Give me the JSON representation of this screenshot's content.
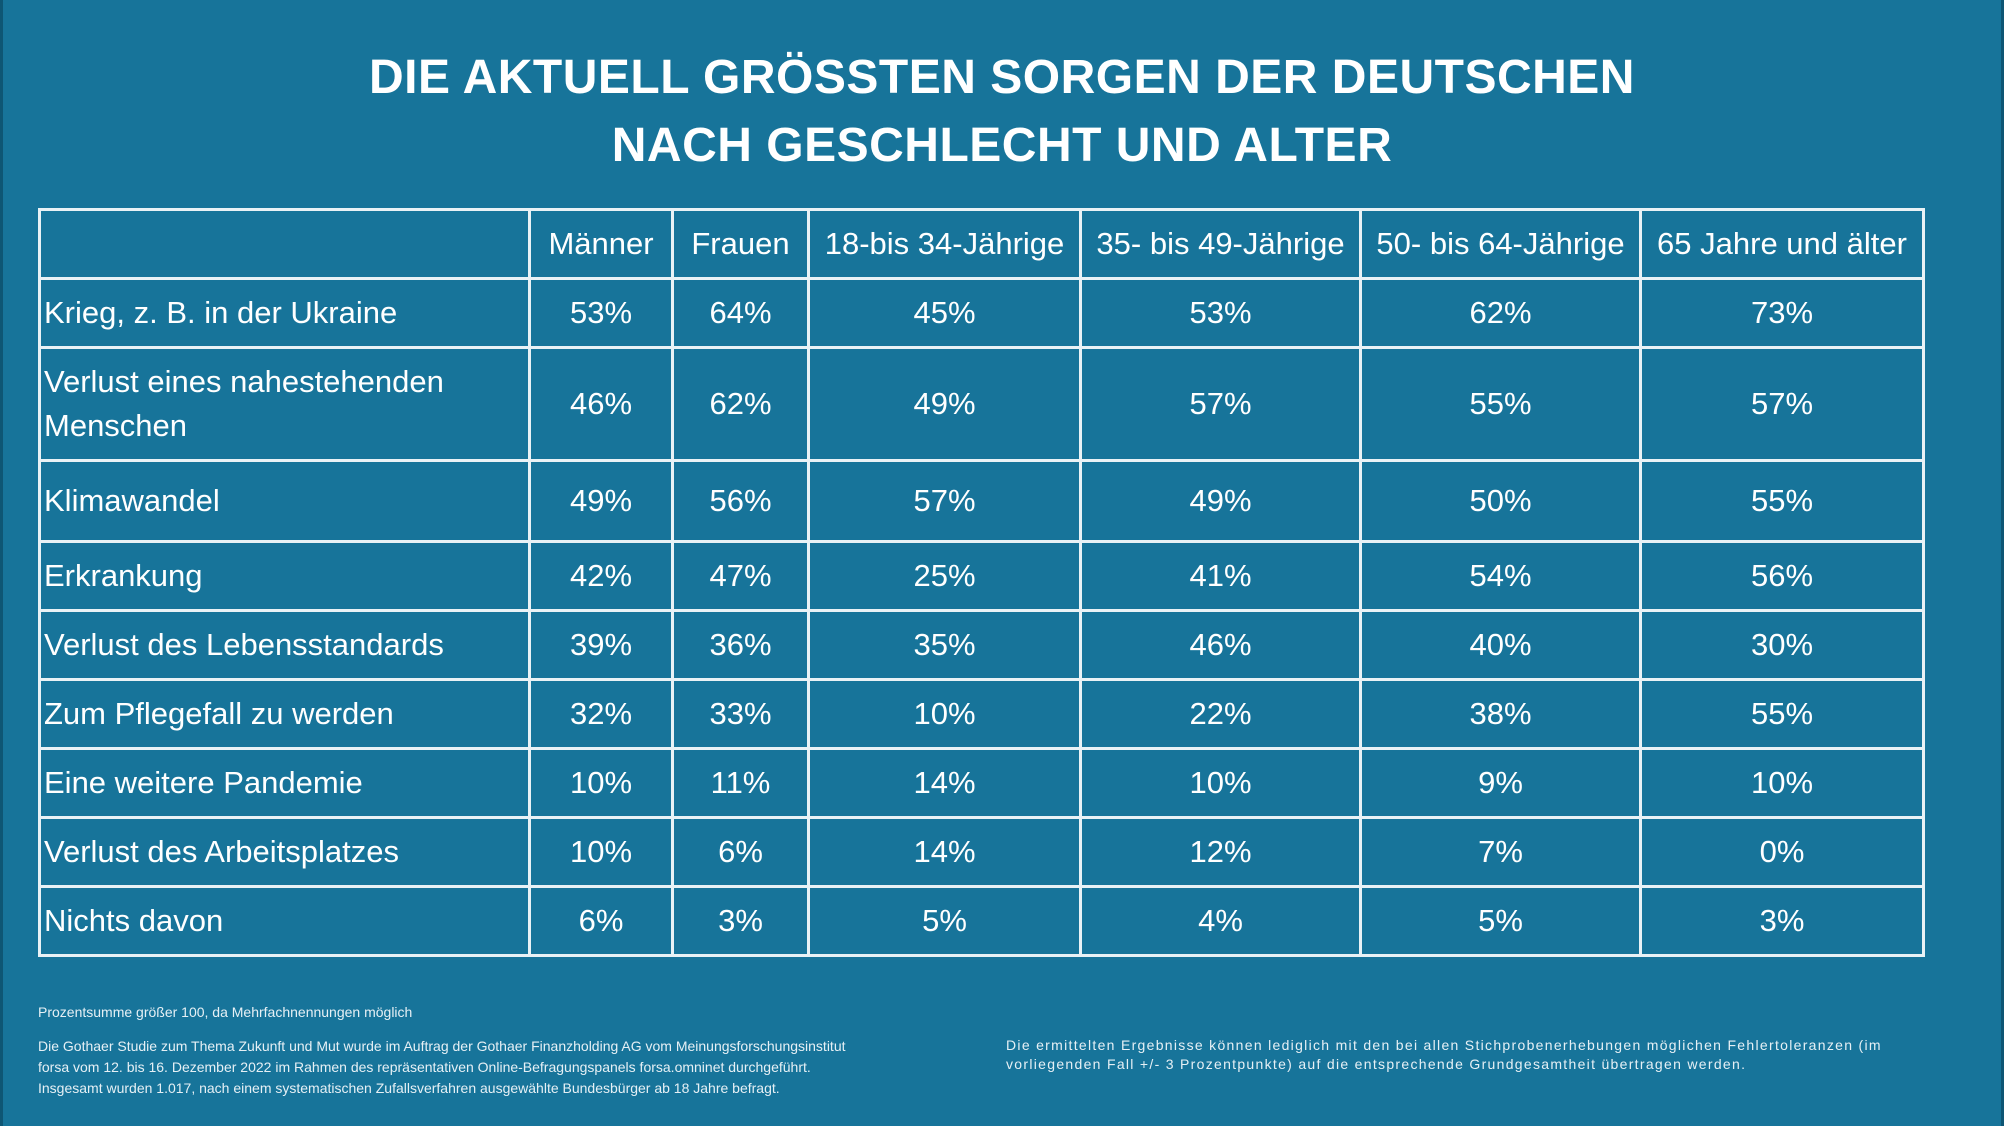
{
  "title": {
    "line1": "DIE AKTUELL GRÖSSTEN SORGEN DER DEUTSCHEN",
    "line2": "NACH GESCHLECHT UND ALTER"
  },
  "table": {
    "columns": [
      "",
      "Männer",
      "Frauen",
      "18-bis 34-Jährige",
      "35- bis 49-Jährige",
      "50- bis 64-Jährige",
      "65 Jahre und älter"
    ],
    "rows": [
      {
        "label": "Krieg, z. B. in der Ukraine",
        "values": [
          "53%",
          "64%",
          "45%",
          "53%",
          "62%",
          "73%"
        ]
      },
      {
        "label": "Verlust eines nahestehenden Menschen",
        "values": [
          "46%",
          "62%",
          "49%",
          "57%",
          "55%",
          "57%"
        ]
      },
      {
        "label": "Klimawandel",
        "values": [
          "49%",
          "56%",
          "57%",
          "49%",
          "50%",
          "55%"
        ]
      },
      {
        "label": "Erkrankung",
        "values": [
          "42%",
          "47%",
          "25%",
          "41%",
          "54%",
          "56%"
        ]
      },
      {
        "label": "Verlust des Lebensstandards",
        "values": [
          "39%",
          "36%",
          "35%",
          "46%",
          "40%",
          "30%"
        ]
      },
      {
        "label": "Zum Pflegefall zu werden",
        "values": [
          "32%",
          "33%",
          "10%",
          "22%",
          "38%",
          "55%"
        ]
      },
      {
        "label": "Eine weitere Pandemie",
        "values": [
          "10%",
          "11%",
          "14%",
          "10%",
          "9%",
          "10%"
        ]
      },
      {
        "label": "Verlust des Arbeitsplatzes",
        "values": [
          "10%",
          "6%",
          "14%",
          "12%",
          "7%",
          "0%"
        ]
      },
      {
        "label": "Nichts davon",
        "values": [
          "6%",
          "3%",
          "5%",
          "4%",
          "5%",
          "3%"
        ]
      }
    ]
  },
  "footnotes": {
    "percent_note": "Prozentsumme größer 100, da Mehrfachnennungen möglich",
    "study_lines": [
      "Die Gothaer Studie zum Thema Zukunft und Mut wurde im Auftrag der Gothaer Finanzholding AG vom Meinungsforschungsinstitut",
      "forsa vom 12. bis 16. Dezember 2022 im Rahmen des repräsentativen Online-Befragungspanels forsa.omninet durchgeführt.",
      "Insgesamt wurden 1.017, nach einem systematischen Zufallsverfahren ausgewählte Bundesbürger ab 18 Jahre befragt."
    ],
    "tolerance": "Die ermittelten Ergebnisse können lediglich mit den bei allen Stichprobenerhebungen möglichen Fehlertoleranzen (im vorliegenden Fall +/- 3 Prozentpunkte) auf die entsprechende Grundgesamtheit übertragen werden."
  },
  "colors": {
    "background": "#17749a",
    "grid_lines": "#e9f2f6",
    "text": "#ffffff"
  }
}
